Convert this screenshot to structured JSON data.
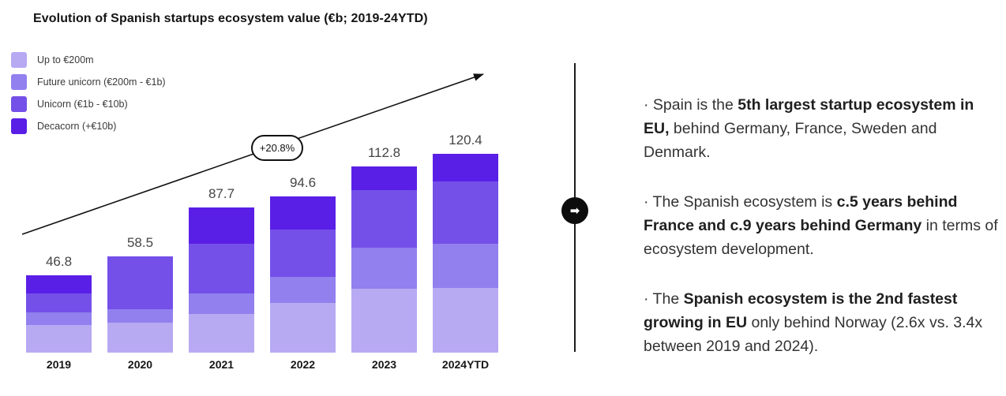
{
  "chart_data": {
    "type": "bar",
    "stacked": true,
    "title": "Evolution of Spanish startups ecosystem value (€b; 2019-24YTD)",
    "categories": [
      "2019",
      "2020",
      "2021",
      "2022",
      "2023",
      "2024YTD"
    ],
    "totals": [
      46.8,
      58.5,
      87.7,
      94.6,
      112.8,
      120.4
    ],
    "series": [
      {
        "name": "Up to €200m",
        "color": "#b8a9f3",
        "values": [
          16.7,
          18.2,
          23.2,
          29.9,
          38.5,
          39.0
        ]
      },
      {
        "name": "Future unicorn (€200m - €1b)",
        "color": "#9180ee",
        "values": [
          7.6,
          8.2,
          12.7,
          15.8,
          25.2,
          27.0
        ]
      },
      {
        "name": "Unicorn (€1b - €10b)",
        "color": "#7450e9",
        "values": [
          11.5,
          32.1,
          29.8,
          28.7,
          34.8,
          37.7
        ]
      },
      {
        "name": "Decacorn (+€10b)",
        "color": "#5a1fe6",
        "values": [
          11.0,
          0,
          22.0,
          20.2,
          14.3,
          16.7
        ]
      }
    ],
    "annotation": {
      "label": "+20.8%"
    },
    "legend_position": "top-left",
    "gridlines": false,
    "value_labels": "totals above bars"
  },
  "insights": {
    "bullets": [
      {
        "segments": [
          {
            "text": "· Spain is the ",
            "bold": false
          },
          {
            "text": "5th largest startup ecosystem in EU,",
            "bold": true
          },
          {
            "text": " behind Germany, France, Sweden and Denmark.",
            "bold": false
          }
        ]
      },
      {
        "segments": [
          {
            "text": "· The Spanish ecosystem is ",
            "bold": false
          },
          {
            "text": "c.5 years behind France and c.9 years behind Germany",
            "bold": true
          },
          {
            "text": " in terms of ecosystem development.",
            "bold": false
          }
        ]
      },
      {
        "segments": [
          {
            "text": "· The ",
            "bold": false
          },
          {
            "text": "Spanish ecosystem is the 2nd fastest growing in EU",
            "bold": true
          },
          {
            "text": " only behind Norway (2.6x vs. 3.4x between 2019 and 2024).",
            "bold": false
          }
        ]
      }
    ]
  },
  "icons": {
    "divider_arrow": "➡"
  }
}
